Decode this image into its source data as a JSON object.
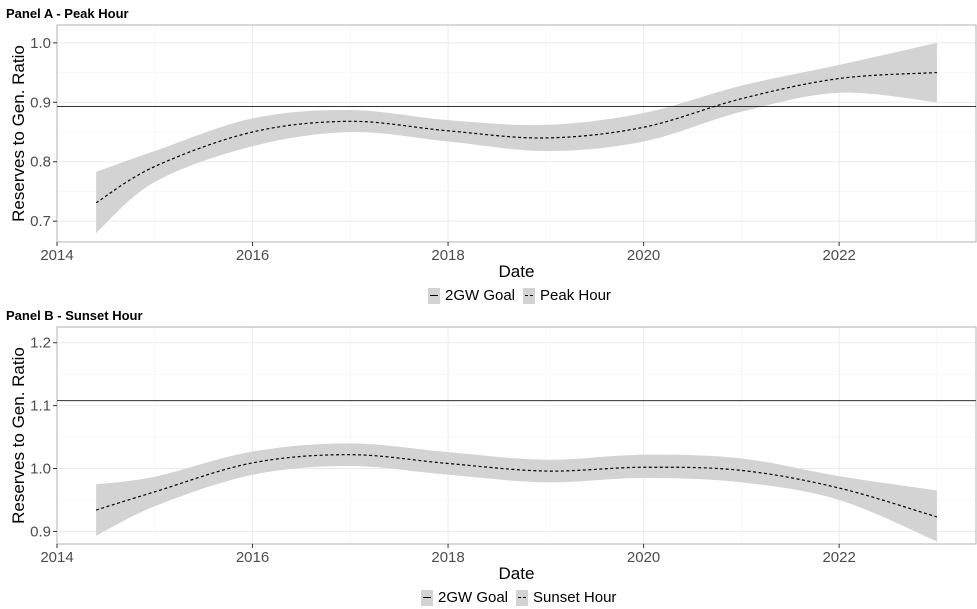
{
  "chart_data": [
    {
      "type": "line",
      "title": "Panel A - Peak Hour",
      "xlabel": "Date",
      "ylabel": "Reserves to Gen. Ratio",
      "xlim": [
        2014,
        2023.4
      ],
      "ylim": [
        0.665,
        1.03
      ],
      "xticks": [
        2014,
        2016,
        2018,
        2020,
        2022
      ],
      "yticks": [
        0.7,
        0.8,
        0.9,
        1.0
      ],
      "xtick_labels": [
        "2014",
        "2016",
        "2018",
        "2020",
        "2022"
      ],
      "ytick_labels": [
        "0.7",
        "0.8",
        "0.9",
        "1.0"
      ],
      "grid": true,
      "legend_position": "bottom",
      "series": [
        {
          "name": "2GW Goal",
          "line_style": "solid",
          "y": 0.893
        },
        {
          "name": "Peak Hour",
          "line_style": "dashed",
          "band_color": "#d3d3d3",
          "x": [
            2014.4,
            2015,
            2016,
            2017,
            2018,
            2019,
            2020,
            2021,
            2022,
            2023
          ],
          "y": [
            0.731,
            0.792,
            0.85,
            0.868,
            0.852,
            0.84,
            0.858,
            0.906,
            0.94,
            0.95
          ],
          "lower": [
            0.68,
            0.766,
            0.826,
            0.85,
            0.834,
            0.818,
            0.834,
            0.884,
            0.916,
            0.9
          ],
          "upper": [
            0.783,
            0.818,
            0.873,
            0.887,
            0.87,
            0.862,
            0.882,
            0.928,
            0.963,
            1.0
          ]
        }
      ]
    },
    {
      "type": "line",
      "title": "Panel B - Sunset Hour",
      "xlabel": "Date",
      "ylabel": "Reserves to Gen. Ratio",
      "xlim": [
        2014,
        2023.4
      ],
      "ylim": [
        0.88,
        1.225
      ],
      "xticks": [
        2014,
        2016,
        2018,
        2020,
        2022
      ],
      "yticks": [
        0.9,
        1.0,
        1.1,
        1.2
      ],
      "xtick_labels": [
        "2014",
        "2016",
        "2018",
        "2020",
        "2022"
      ],
      "ytick_labels": [
        "0.9",
        "1.0",
        "1.1",
        "1.2"
      ],
      "grid": true,
      "legend_position": "bottom",
      "series": [
        {
          "name": "2GW Goal",
          "line_style": "solid",
          "y": 1.108
        },
        {
          "name": "Sunset Hour",
          "line_style": "dashed",
          "band_color": "#d3d3d3",
          "x": [
            2014.4,
            2015,
            2016,
            2017,
            2018,
            2019,
            2020,
            2021,
            2022,
            2023
          ],
          "y": [
            0.934,
            0.963,
            1.009,
            1.022,
            1.008,
            0.996,
            1.002,
            0.997,
            0.969,
            0.923
          ],
          "lower": [
            0.893,
            0.94,
            0.99,
            1.004,
            0.99,
            0.978,
            0.985,
            0.978,
            0.95,
            0.884
          ],
          "upper": [
            0.975,
            0.987,
            1.027,
            1.04,
            1.026,
            1.014,
            1.022,
            1.016,
            0.988,
            0.965
          ]
        }
      ]
    }
  ]
}
